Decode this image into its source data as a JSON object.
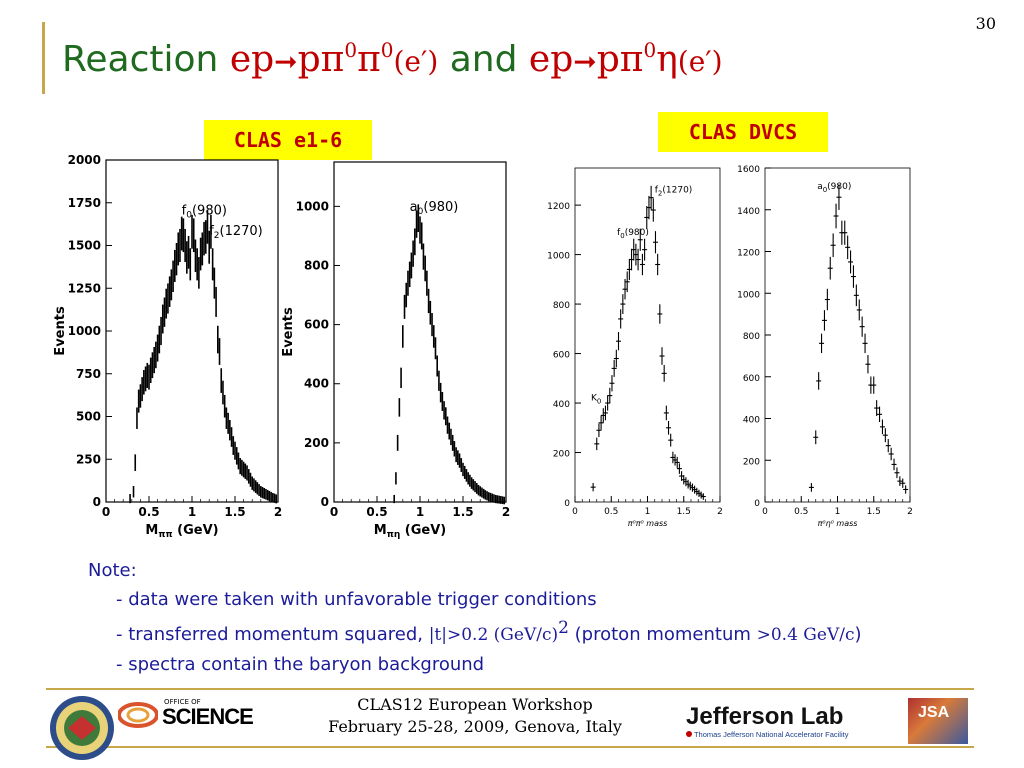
{
  "slide": {
    "page_number": "30",
    "title": {
      "word_reaction": "Reaction",
      "reaction1_lhs": "ep",
      "reaction1_rhs_a": "pπ",
      "reaction1_sup1": "0",
      "reaction1_rhs_b": "π",
      "reaction1_sup2": "0",
      "reaction1_tail": "(e′)",
      "word_and": "and",
      "reaction2_lhs": "ep",
      "reaction2_rhs_a": "pπ",
      "reaction2_sup1": "0",
      "reaction2_rhs_b": "η",
      "reaction2_tail": "(e′)"
    },
    "label_clas_e16": "CLAS e1-6",
    "label_clas_dvcs": "CLAS DVCS",
    "notes": {
      "heading": "Note:",
      "line1": "- data were taken with unfavorable trigger conditions",
      "line2_a": "- transferred momentum squared, ",
      "line2_b": "|t|>0.2 (GeV/c)",
      "line2_sup": "2",
      "line2_c": " (proton momentum ",
      "line2_d": ">0.4 GeV/c",
      "line2_e": ")",
      "line3": "- spectra contain the baryon background"
    },
    "footer": {
      "line1": "CLAS12 European Workshop",
      "line2": "February 25-28, 2009, Genova, Italy",
      "logo_left_text": "OFFICE OF",
      "logo_left_main": "SCIENCE",
      "logo_right_main": "Jefferson Lab",
      "logo_right_sub": "Thomas Jefferson National Accelerator Facility",
      "logo_jsa": "JSA"
    },
    "colors": {
      "title_green": "#1f6a1f",
      "title_red": "#c00000",
      "gold_line": "#c8a64a",
      "label_bg": "#ffff00",
      "note_blue": "#1c1c9a"
    }
  },
  "chart_data": [
    {
      "type": "histogram",
      "xlabel_main": "M",
      "xlabel_sub": "ππ",
      "xlabel_unit": " (GeV)",
      "ylabel": "Events",
      "xlim": [
        0,
        2
      ],
      "ylim": [
        0,
        2000
      ],
      "xticks": [
        "0",
        "0.5",
        "1",
        "1.5",
        "2"
      ],
      "yticks": [
        "0",
        "250",
        "500",
        "750",
        "1000",
        "1250",
        "1500",
        "1750",
        "2000"
      ],
      "annotations": [
        {
          "text": "f",
          "sub": "0",
          "rest": "(980)",
          "x": 0.88,
          "y": 1680
        },
        {
          "text": "f",
          "sub": "2",
          "rest": "(1270)",
          "x": 1.2,
          "y": 1560
        }
      ],
      "x": [
        0.28,
        0.32,
        0.34,
        0.36,
        0.38,
        0.4,
        0.42,
        0.44,
        0.46,
        0.48,
        0.5,
        0.52,
        0.54,
        0.56,
        0.58,
        0.6,
        0.62,
        0.64,
        0.66,
        0.68,
        0.7,
        0.72,
        0.74,
        0.76,
        0.78,
        0.8,
        0.82,
        0.84,
        0.86,
        0.88,
        0.9,
        0.92,
        0.94,
        0.96,
        0.98,
        1.0,
        1.02,
        1.04,
        1.06,
        1.08,
        1.1,
        1.12,
        1.14,
        1.16,
        1.18,
        1.2,
        1.22,
        1.24,
        1.26,
        1.28,
        1.3,
        1.32,
        1.34,
        1.36,
        1.38,
        1.4,
        1.42,
        1.44,
        1.46,
        1.48,
        1.5,
        1.52,
        1.54,
        1.56,
        1.58,
        1.6,
        1.62,
        1.64,
        1.66,
        1.68,
        1.7,
        1.72,
        1.74,
        1.76,
        1.78,
        1.8,
        1.82,
        1.84,
        1.86,
        1.88,
        1.9,
        1.92,
        1.94,
        1.96,
        1.98
      ],
      "values": [
        20,
        60,
        230,
        490,
        590,
        620,
        660,
        700,
        720,
        740,
        730,
        770,
        800,
        830,
        860,
        900,
        950,
        1000,
        1070,
        1110,
        1160,
        1190,
        1230,
        1270,
        1320,
        1380,
        1420,
        1480,
        1500,
        1570,
        1560,
        1500,
        1430,
        1460,
        1390,
        1580,
        1560,
        1440,
        1390,
        1340,
        1450,
        1480,
        1540,
        1550,
        1610,
        1490,
        1580,
        1390,
        1280,
        1170,
        950,
        880,
        710,
        640,
        560,
        490,
        460,
        420,
        380,
        330,
        300,
        270,
        240,
        210,
        200,
        190,
        180,
        170,
        150,
        130,
        110,
        100,
        90,
        80,
        70,
        60,
        55,
        50,
        45,
        40,
        35,
        30,
        25,
        22,
        18
      ]
    },
    {
      "type": "histogram",
      "xlabel_main": "M",
      "xlabel_sub": "πη",
      "xlabel_unit": " (GeV)",
      "ylabel": "Events",
      "xlim": [
        0,
        2
      ],
      "ylim": [
        0,
        1150
      ],
      "xticks": [
        "0",
        "0.5",
        "1",
        "1.5",
        "2"
      ],
      "yticks": [
        "0",
        "200",
        "400",
        "600",
        "800",
        "1000"
      ],
      "annotations": [
        {
          "text": "a",
          "sub": "0",
          "rest": "(980)",
          "x": 0.88,
          "y": 985
        }
      ],
      "x": [
        0.7,
        0.72,
        0.74,
        0.76,
        0.78,
        0.8,
        0.82,
        0.84,
        0.86,
        0.88,
        0.9,
        0.92,
        0.94,
        0.96,
        0.98,
        1.0,
        1.02,
        1.04,
        1.06,
        1.08,
        1.1,
        1.12,
        1.14,
        1.16,
        1.18,
        1.2,
        1.22,
        1.24,
        1.26,
        1.28,
        1.3,
        1.32,
        1.34,
        1.36,
        1.38,
        1.4,
        1.42,
        1.44,
        1.46,
        1.48,
        1.5,
        1.52,
        1.54,
        1.56,
        1.58,
        1.6,
        1.62,
        1.64,
        1.66,
        1.68,
        1.7,
        1.72,
        1.74,
        1.76,
        1.78,
        1.8,
        1.82,
        1.84,
        1.86,
        1.88,
        1.9,
        1.92,
        1.94,
        1.96,
        1.98
      ],
      "values": [
        10,
        80,
        200,
        320,
        420,
        560,
        660,
        700,
        740,
        770,
        800,
        840,
        880,
        940,
        960,
        920,
        900,
        830,
        790,
        740,
        680,
        640,
        600,
        560,
        520,
        460,
        410,
        370,
        340,
        310,
        290,
        260,
        240,
        220,
        200,
        180,
        160,
        150,
        140,
        125,
        110,
        100,
        90,
        80,
        72,
        64,
        58,
        52,
        46,
        40,
        36,
        32,
        28,
        24,
        21,
        18,
        16,
        14,
        12,
        10,
        9,
        8,
        7,
        6,
        5
      ]
    },
    {
      "type": "scatter",
      "xlabel": "π⁰π⁰ mass",
      "xlim": [
        0,
        2
      ],
      "ylim": [
        0,
        1350
      ],
      "xticks": [
        "0",
        "0.5",
        "1",
        "1.5",
        "2"
      ],
      "yticks": [
        "0",
        "200",
        "400",
        "600",
        "800",
        "1000",
        "1200"
      ],
      "annotations": [
        {
          "text": "f",
          "sub": "0",
          "rest": "(980)",
          "x": 0.58,
          "y": 1080
        },
        {
          "text": "f",
          "sub": "2",
          "rest": "(1270)",
          "x": 1.1,
          "y": 1250
        },
        {
          "text": "K",
          "sub": "0",
          "rest": "",
          "x": 0.22,
          "y": 410
        }
      ],
      "x": [
        0.25,
        0.3,
        0.33,
        0.36,
        0.39,
        0.42,
        0.45,
        0.48,
        0.51,
        0.54,
        0.57,
        0.6,
        0.63,
        0.66,
        0.69,
        0.72,
        0.75,
        0.78,
        0.81,
        0.84,
        0.87,
        0.9,
        0.93,
        0.96,
        0.99,
        1.02,
        1.05,
        1.08,
        1.11,
        1.14,
        1.17,
        1.2,
        1.23,
        1.26,
        1.29,
        1.32,
        1.35,
        1.38,
        1.41,
        1.44,
        1.47,
        1.5,
        1.53,
        1.56,
        1.59,
        1.62,
        1.65,
        1.68,
        1.71,
        1.74,
        1.77
      ],
      "values": [
        60,
        235,
        290,
        320,
        350,
        360,
        400,
        430,
        480,
        540,
        580,
        650,
        740,
        800,
        860,
        890,
        940,
        980,
        1020,
        1000,
        980,
        1060,
        960,
        1020,
        1150,
        1190,
        1230,
        1180,
        1050,
        960,
        760,
        590,
        520,
        360,
        300,
        250,
        180,
        170,
        160,
        135,
        105,
        90,
        82,
        72,
        65,
        58,
        50,
        42,
        35,
        28,
        22
      ]
    },
    {
      "type": "scatter",
      "xlabel": "π⁰η⁰ mass",
      "xlim": [
        0,
        2
      ],
      "ylim": [
        0,
        1600
      ],
      "xticks": [
        "0",
        "0.5",
        "1",
        "1.5",
        "2"
      ],
      "yticks": [
        "0",
        "200",
        "400",
        "600",
        "800",
        "1000",
        "1200",
        "1400",
        "1600"
      ],
      "annotations": [
        {
          "text": "a",
          "sub": "0",
          "rest": "(980)",
          "x": 0.72,
          "y": 1500
        }
      ],
      "x": [
        0.64,
        0.7,
        0.74,
        0.78,
        0.82,
        0.86,
        0.9,
        0.94,
        0.98,
        1.02,
        1.06,
        1.1,
        1.14,
        1.18,
        1.22,
        1.26,
        1.3,
        1.34,
        1.38,
        1.42,
        1.46,
        1.5,
        1.54,
        1.58,
        1.62,
        1.66,
        1.7,
        1.74,
        1.78,
        1.82,
        1.86,
        1.9,
        1.94
      ],
      "values": [
        70,
        310,
        580,
        760,
        870,
        970,
        1120,
        1230,
        1370,
        1460,
        1290,
        1290,
        1220,
        1150,
        1080,
        990,
        920,
        840,
        760,
        660,
        560,
        560,
        450,
        420,
        360,
        320,
        270,
        230,
        180,
        140,
        100,
        90,
        60
      ]
    }
  ]
}
